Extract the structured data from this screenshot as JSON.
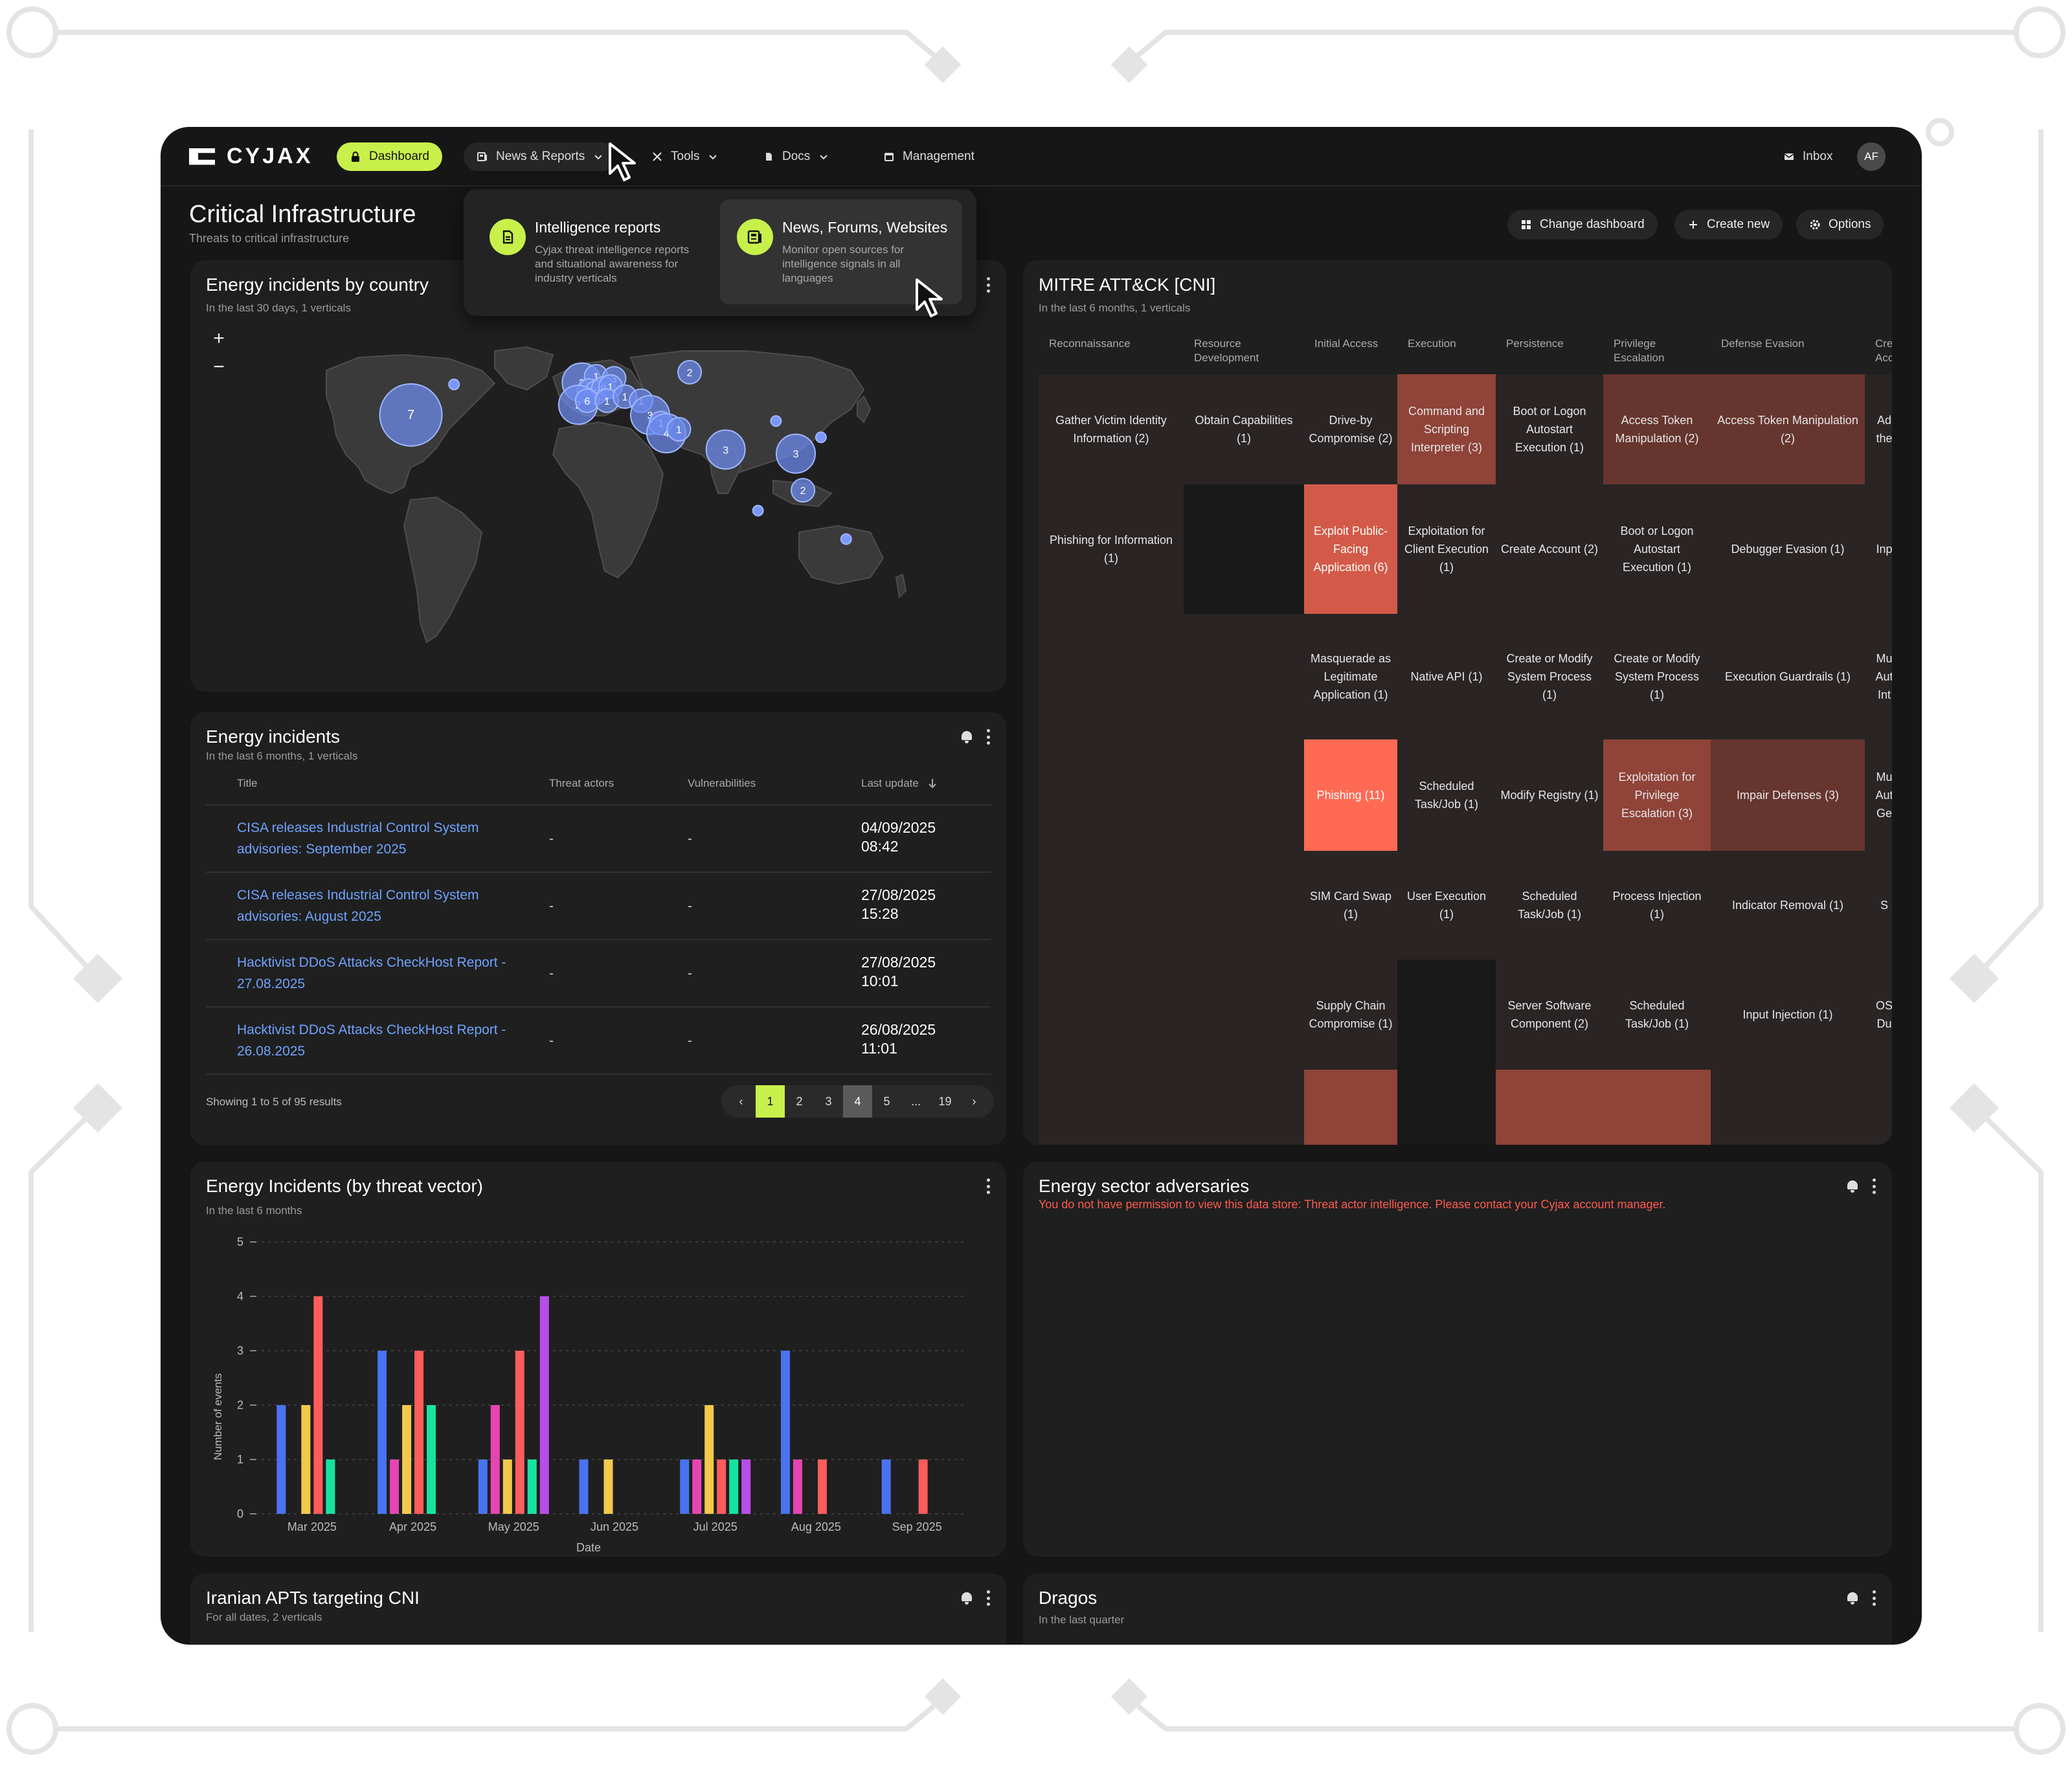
{
  "nav": {
    "brand": "CYJAX",
    "dashboard": "Dashboard",
    "news": "News & Reports",
    "tools": "Tools",
    "docs": "Docs",
    "management": "Management",
    "inbox": "Inbox",
    "avatar": "AF"
  },
  "dropdown": {
    "items": [
      {
        "title": "Intelligence reports",
        "desc": "Cyjax threat intelligence reports and situational awareness for industry verticals"
      },
      {
        "title": "News, Forums, Websites",
        "desc": "Monitor open sources for intelligence signals in all languages"
      }
    ]
  },
  "page": {
    "title": "Critical Infrastructure",
    "subtitle": "Threats to critical infrastructure",
    "buttons": {
      "change": "Change dashboard",
      "create": "Create new",
      "options": "Options"
    }
  },
  "map_card": {
    "title": "Energy incidents by country",
    "subtitle": "In the last 30 days, 1 verticals",
    "markers": [
      {
        "label": "7",
        "lon": -97,
        "lat": 39,
        "size": "large"
      },
      {
        "label": "1",
        "lon": -73,
        "lat": 54,
        "size": "dot"
      },
      {
        "label": "2",
        "lon": 58,
        "lat": 60,
        "size": "small"
      },
      {
        "label": "2",
        "lon": -2,
        "lat": 55,
        "size": "medium"
      },
      {
        "label": "1",
        "lon": 6,
        "lat": 58,
        "size": "small"
      },
      {
        "label": "3",
        "lon": 16,
        "lat": 57,
        "size": "small"
      },
      {
        "label": "2",
        "lon": 2,
        "lat": 51,
        "size": "small"
      },
      {
        "label": "2",
        "lon": 6,
        "lat": 50,
        "size": "small"
      },
      {
        "label": "8",
        "lon": 10,
        "lat": 52,
        "size": "small"
      },
      {
        "label": "1",
        "lon": 14,
        "lat": 53,
        "size": "small"
      },
      {
        "label": "2",
        "lon": -4,
        "lat": 44,
        "size": "medium"
      },
      {
        "label": "6",
        "lon": 1,
        "lat": 46,
        "size": "small"
      },
      {
        "label": "1",
        "lon": 12,
        "lat": 46,
        "size": "small"
      },
      {
        "label": "1",
        "lon": 22,
        "lat": 48,
        "size": "small"
      },
      {
        "label": "1",
        "lon": 31,
        "lat": 46,
        "size": "small"
      },
      {
        "label": "3",
        "lon": 36,
        "lat": 39,
        "size": "medium"
      },
      {
        "label": "1",
        "lon": 42,
        "lat": 35,
        "size": "small"
      },
      {
        "label": "4",
        "lon": 45,
        "lat": 30,
        "size": "medium"
      },
      {
        "label": "1",
        "lon": 52,
        "lat": 32,
        "size": "small"
      },
      {
        "label": "3",
        "lon": 78,
        "lat": 22,
        "size": "medium"
      },
      {
        "label": "1",
        "lon": 106,
        "lat": 36,
        "size": "dot"
      },
      {
        "label": "3",
        "lon": 117,
        "lat": 20,
        "size": "medium"
      },
      {
        "label": "1",
        "lon": 131,
        "lat": 28,
        "size": "dot"
      },
      {
        "label": "2",
        "lon": 121,
        "lat": 2,
        "size": "small"
      },
      {
        "label": "1",
        "lon": 96,
        "lat": -8,
        "size": "dot"
      },
      {
        "label": "1",
        "lon": 145,
        "lat": -22,
        "size": "dot"
      }
    ]
  },
  "incidents_card": {
    "title": "Energy incidents",
    "subtitle": "In the last 6 months, 1 verticals",
    "headers": [
      "Title",
      "Threat actors",
      "Vulnerabilities",
      "Last update"
    ],
    "rows": [
      {
        "title": "CISA releases Industrial Control System advisories: September 2025",
        "actors": "-",
        "vulns": "-",
        "date": "04/09/2025",
        "time": "08:42"
      },
      {
        "title": "CISA releases Industrial Control System advisories: August 2025",
        "actors": "-",
        "vulns": "-",
        "date": "27/08/2025",
        "time": "15:28"
      },
      {
        "title": "Hacktivist DDoS Attacks CheckHost Report - 27.08.2025",
        "actors": "-",
        "vulns": "-",
        "date": "27/08/2025",
        "time": "10:01"
      },
      {
        "title": "Hacktivist DDoS Attacks CheckHost Report - 26.08.2025",
        "actors": "-",
        "vulns": "-",
        "date": "26/08/2025",
        "time": "11:01"
      }
    ],
    "showing": "Showing 1 to 5 of 95 results",
    "pages": [
      "1",
      "2",
      "3",
      "4",
      "5",
      "...",
      "19"
    ]
  },
  "mitre_card": {
    "title": "MITRE ATT&CK [CNI]",
    "subtitle": "In the last 6 months, 1 verticals",
    "columns": [
      "Reconnaissance",
      "Resource Development",
      "Initial Access",
      "Execution",
      "Persistence",
      "Privilege Escalation",
      "Defense Evasion",
      "Credential Access"
    ],
    "cells": [
      {
        "col": 0,
        "row": 0,
        "text": "Gather Victim Identity Information (2)",
        "level": 1
      },
      {
        "col": 1,
        "row": 0,
        "text": "Obtain Capabilities (1)",
        "level": 1
      },
      {
        "col": 2,
        "row": 0,
        "text": "Drive-by Compromise (2)",
        "level": 1
      },
      {
        "col": 3,
        "row": 0,
        "text": "Command and Scripting Interpreter (3)",
        "level": 3
      },
      {
        "col": 4,
        "row": 0,
        "text": "Boot or Logon Autostart Execution (1)",
        "level": 1
      },
      {
        "col": 5,
        "row": 0,
        "text": "Access Token Manipulation (2)",
        "level": 2
      },
      {
        "col": 6,
        "row": 0,
        "text": "Access Token Manipulation (2)",
        "level": 2
      },
      {
        "col": 7,
        "row": 0,
        "text": "Ad the",
        "level": 1
      },
      {
        "col": 0,
        "row": 1,
        "text": "Phishing for Information (1)",
        "level": 1
      },
      {
        "col": 1,
        "row": 1,
        "text": "",
        "level": 0
      },
      {
        "col": 2,
        "row": 1,
        "text": "Exploit Public-Facing Application (6)",
        "level": 4
      },
      {
        "col": 3,
        "row": 1,
        "text": "Exploitation for Client Execution (1)",
        "level": 1
      },
      {
        "col": 4,
        "row": 1,
        "text": "Create Account (2)",
        "level": 1
      },
      {
        "col": 5,
        "row": 1,
        "text": "Boot or Logon Autostart Execution (1)",
        "level": 1
      },
      {
        "col": 6,
        "row": 1,
        "text": "Debugger Evasion (1)",
        "level": 1
      },
      {
        "col": 7,
        "row": 1,
        "text": "Inp",
        "level": 1
      },
      {
        "col": 0,
        "row": 2,
        "text": "",
        "level": 1
      },
      {
        "col": 1,
        "row": 2,
        "text": "",
        "level": 1
      },
      {
        "col": 2,
        "row": 2,
        "text": "Masquerade as Legitimate Application (1)",
        "level": 1
      },
      {
        "col": 3,
        "row": 2,
        "text": "Native API (1)",
        "level": 1
      },
      {
        "col": 4,
        "row": 2,
        "text": "Create or Modify System Process (1)",
        "level": 1
      },
      {
        "col": 5,
        "row": 2,
        "text": "Create or Modify System Process (1)",
        "level": 1
      },
      {
        "col": 6,
        "row": 2,
        "text": "Execution Guardrails (1)",
        "level": 1
      },
      {
        "col": 7,
        "row": 2,
        "text": "Mu Aut Int",
        "level": 1
      },
      {
        "col": 0,
        "row": 3,
        "text": "",
        "level": 1
      },
      {
        "col": 1,
        "row": 3,
        "text": "",
        "level": 1
      },
      {
        "col": 2,
        "row": 3,
        "text": "Phishing (11)",
        "level": 5
      },
      {
        "col": 3,
        "row": 3,
        "text": "Scheduled Task/Job (1)",
        "level": 1
      },
      {
        "col": 4,
        "row": 3,
        "text": "Modify Registry (1)",
        "level": 1
      },
      {
        "col": 5,
        "row": 3,
        "text": "Exploitation for Privilege Escalation (3)",
        "level": 3
      },
      {
        "col": 6,
        "row": 3,
        "text": "Impair Defenses (3)",
        "level": 2
      },
      {
        "col": 7,
        "row": 3,
        "text": "Mu Aut Ge",
        "level": 1
      },
      {
        "col": 0,
        "row": 4,
        "text": "",
        "level": 1
      },
      {
        "col": 1,
        "row": 4,
        "text": "",
        "level": 1
      },
      {
        "col": 2,
        "row": 4,
        "text": "SIM Card Swap (1)",
        "level": 1
      },
      {
        "col": 3,
        "row": 4,
        "text": "User Execution (1)",
        "level": 1
      },
      {
        "col": 4,
        "row": 4,
        "text": "Scheduled Task/Job (1)",
        "level": 1
      },
      {
        "col": 5,
        "row": 4,
        "text": "Process Injection (1)",
        "level": 1
      },
      {
        "col": 6,
        "row": 4,
        "text": "Indicator Removal (1)",
        "level": 1
      },
      {
        "col": 7,
        "row": 4,
        "text": "S",
        "level": 1
      },
      {
        "col": 0,
        "row": 5,
        "text": "",
        "level": 1
      },
      {
        "col": 1,
        "row": 5,
        "text": "",
        "level": 1
      },
      {
        "col": 2,
        "row": 5,
        "text": "Supply Chain Compromise (1)",
        "level": 1
      },
      {
        "col": 3,
        "row": 5,
        "text": "",
        "level": 0
      },
      {
        "col": 4,
        "row": 5,
        "text": "Server Software Component (2)",
        "level": 1
      },
      {
        "col": 5,
        "row": 5,
        "text": "Scheduled Task/Job (1)",
        "level": 1
      },
      {
        "col": 6,
        "row": 5,
        "text": "Input Injection (1)",
        "level": 1
      },
      {
        "col": 7,
        "row": 5,
        "text": "OS Du",
        "level": 1
      },
      {
        "col": 0,
        "row": 6,
        "text": "",
        "level": 1
      },
      {
        "col": 1,
        "row": 6,
        "text": "",
        "level": 1
      },
      {
        "col": 2,
        "row": 6,
        "text": "",
        "level": 3
      },
      {
        "col": 3,
        "row": 6,
        "text": "",
        "level": 0
      },
      {
        "col": 4,
        "row": 6,
        "text": "",
        "level": 3
      },
      {
        "col": 5,
        "row": 6,
        "text": "",
        "level": 3
      },
      {
        "col": 6,
        "row": 6,
        "text": "",
        "level": 1
      },
      {
        "col": 7,
        "row": 6,
        "text": "",
        "level": 1
      }
    ],
    "colors": {
      "0": "#191919",
      "1": "#2a2424",
      "2": "#66352e",
      "3": "#8f4339",
      "4": "#d35a48",
      "5": "#ff6a55"
    }
  },
  "chart_card": {
    "title": "Energy Incidents (by threat vector)",
    "subtitle": "In the last 6 months"
  },
  "chart_data": {
    "type": "bar",
    "categories": [
      "Mar 2025",
      "Apr 2025",
      "May 2025",
      "Jun 2025",
      "Jul 2025",
      "Aug 2025",
      "Sep 2025"
    ],
    "series": [
      {
        "color": "#4a73f0",
        "values": [
          2,
          3,
          1,
          1,
          1,
          3,
          1
        ]
      },
      {
        "color": "#e545b0",
        "values": [
          0,
          1,
          2,
          0,
          1,
          1,
          0
        ]
      },
      {
        "color": "#f2c94c",
        "values": [
          2,
          2,
          1,
          1,
          2,
          0,
          0
        ]
      },
      {
        "color": "#ff5c5c",
        "values": [
          4,
          3,
          3,
          0,
          1,
          1,
          1
        ]
      },
      {
        "color": "#17e3a0",
        "values": [
          1,
          2,
          1,
          0,
          1,
          0,
          0
        ]
      },
      {
        "color": "#b84ee8",
        "values": [
          0,
          0,
          4,
          0,
          1,
          0,
          0
        ]
      }
    ],
    "xlabel": "Date",
    "ylabel": "Number of events",
    "ylim": [
      0,
      5
    ],
    "yticks": [
      "0",
      "1",
      "2",
      "3",
      "4",
      "5"
    ],
    "grid": true
  },
  "adversaries_card": {
    "title": "Energy sector adversaries",
    "error": "You do not have permission to view this data store: Threat actor intelligence. Please contact your Cyjax account manager."
  },
  "iran_card": {
    "title": "Iranian APTs targeting CNI",
    "subtitle": "For all dates, 2 verticals"
  },
  "dragos_card": {
    "title": "Dragos",
    "subtitle": "In the last quarter"
  }
}
